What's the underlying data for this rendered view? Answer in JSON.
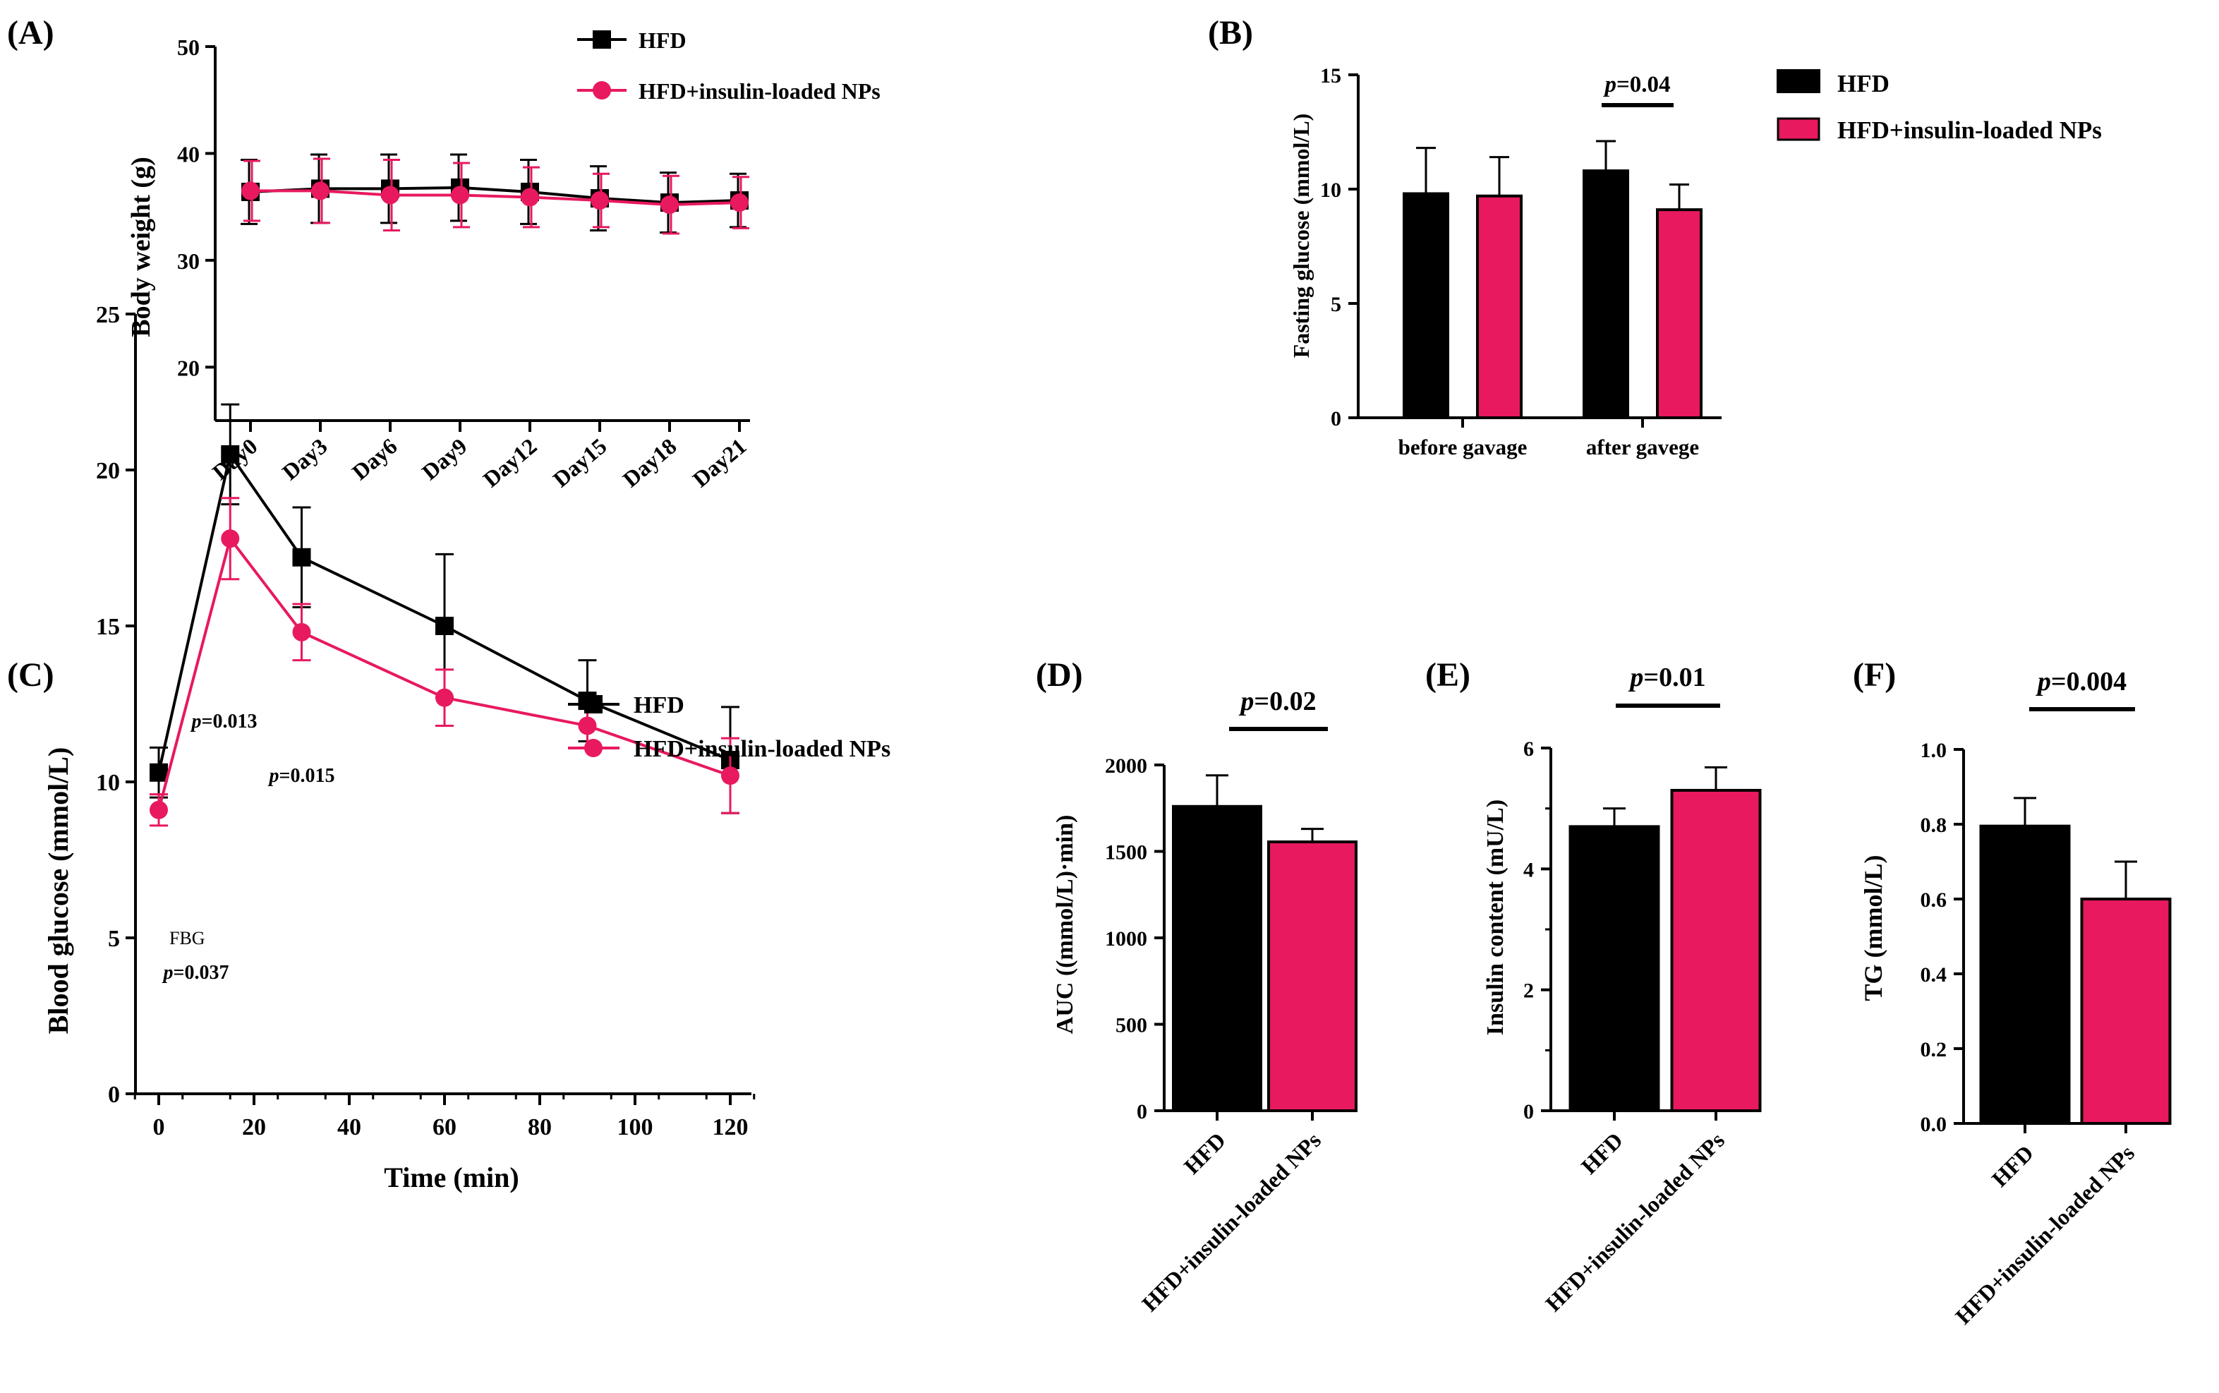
{
  "colors": {
    "hfd": "#000000",
    "np": "#E8195E",
    "axis": "#000000"
  },
  "chart_data": [
    {
      "id": "A",
      "panel_label": "(A)",
      "type": "line",
      "ylabel": "Body weight (g)",
      "xlabel": "",
      "categories": [
        "Day0",
        "Day3",
        "Day6",
        "Day9",
        "Day12",
        "Day15",
        "Day18",
        "Day21"
      ],
      "ylim": [
        15,
        50
      ],
      "yticks": [
        "20",
        "30",
        "40",
        "50"
      ],
      "legend": [
        "HFD",
        "HFD+insulin-loaded NPs"
      ],
      "series": [
        {
          "name": "HFD",
          "values": [
            36.4,
            36.7,
            36.7,
            36.8,
            36.4,
            35.8,
            35.4,
            35.6
          ],
          "errors": [
            3.0,
            3.2,
            3.2,
            3.1,
            3.0,
            3.0,
            2.8,
            2.5
          ]
        },
        {
          "name": "HFD+insulin-loaded NPs",
          "values": [
            36.5,
            36.5,
            36.1,
            36.1,
            35.9,
            35.6,
            35.2,
            35.4
          ],
          "errors": [
            2.8,
            3.0,
            3.3,
            3.0,
            2.8,
            2.5,
            2.7,
            2.4
          ]
        }
      ]
    },
    {
      "id": "B",
      "panel_label": "(B)",
      "type": "bar",
      "ylabel": "Fasting glucose (mmol/L)",
      "categories": [
        "before gavage",
        "after gavege"
      ],
      "ylim": [
        0,
        15
      ],
      "yticks": [
        "0",
        "5",
        "10",
        "15"
      ],
      "legend": [
        "HFD",
        "HFD+insulin-loaded NPs"
      ],
      "series": [
        {
          "name": "HFD",
          "values": [
            9.8,
            10.8
          ],
          "errors": [
            2.0,
            1.3
          ]
        },
        {
          "name": "HFD+insulin-loaded NPs",
          "values": [
            9.7,
            9.1
          ],
          "errors": [
            1.7,
            1.1
          ]
        }
      ],
      "annotation": {
        "p": "p",
        "text": "=0.04"
      }
    },
    {
      "id": "C",
      "panel_label": "(C)",
      "type": "line",
      "ylabel": "Blood glucose (mmol/L)",
      "xlabel": "Time (min)",
      "x": [
        0,
        15,
        30,
        60,
        90,
        120
      ],
      "xlim": [
        -5,
        125
      ],
      "xticks": [
        "0",
        "20",
        "40",
        "60",
        "80",
        "100",
        "120"
      ],
      "ylim": [
        0,
        25
      ],
      "yticks": [
        "0",
        "5",
        "10",
        "15",
        "20",
        "25"
      ],
      "legend": [
        "HFD",
        "HFD+insulin-loaded NPs"
      ],
      "series": [
        {
          "name": "HFD",
          "values": [
            10.3,
            20.5,
            17.2,
            15.0,
            12.6,
            10.7
          ],
          "errors": [
            0.8,
            1.6,
            1.6,
            2.3,
            1.3,
            1.7
          ]
        },
        {
          "name": "HFD+insulin-loaded NPs",
          "values": [
            9.1,
            17.8,
            14.8,
            12.7,
            11.8,
            10.2
          ],
          "errors": [
            0.5,
            1.3,
            0.9,
            0.9,
            0.7,
            1.2
          ]
        }
      ],
      "annotations": [
        {
          "p": "p",
          "text": "=0.013"
        },
        {
          "p": "p",
          "text": "=0.015"
        },
        {
          "p": "p",
          "text": "=0.037"
        },
        {
          "p": "",
          "text": "FBG"
        }
      ]
    },
    {
      "id": "D",
      "panel_label": "(D)",
      "type": "bar",
      "ylabel": "AUC ((mmol/L)·min)",
      "categories": [
        "HFD",
        "HFD+insulin-loaded NPs"
      ],
      "ylim": [
        0,
        2000
      ],
      "yticks": [
        "0",
        "500",
        "1000",
        "1500",
        "2000"
      ],
      "values": [
        1760,
        1555
      ],
      "errors": [
        180,
        75
      ],
      "annotation": {
        "p": "p",
        "text": "=0.02"
      }
    },
    {
      "id": "E",
      "panel_label": "(E)",
      "type": "bar",
      "ylabel": "Insulin content (mU/L)",
      "categories": [
        "HFD",
        "HFD+insulin-loaded NPs"
      ],
      "ylim": [
        0,
        6
      ],
      "yticks": [
        "0",
        "2",
        "4",
        "6"
      ],
      "values": [
        4.7,
        5.3
      ],
      "errors": [
        0.3,
        0.38
      ],
      "annotation": {
        "p": "p",
        "text": "=0.01"
      }
    },
    {
      "id": "F",
      "panel_label": "(F)",
      "type": "bar",
      "ylabel": "TG (mmol/L)",
      "categories": [
        "HFD",
        "HFD+insulin-loaded NPs"
      ],
      "ylim": [
        0,
        1.0
      ],
      "yticks": [
        "0.0",
        "0.2",
        "0.4",
        "0.6",
        "0.8",
        "1.0"
      ],
      "values": [
        0.795,
        0.6
      ],
      "errors": [
        0.075,
        0.1
      ],
      "annotation": {
        "p": "p",
        "text": "=0.004"
      }
    }
  ]
}
